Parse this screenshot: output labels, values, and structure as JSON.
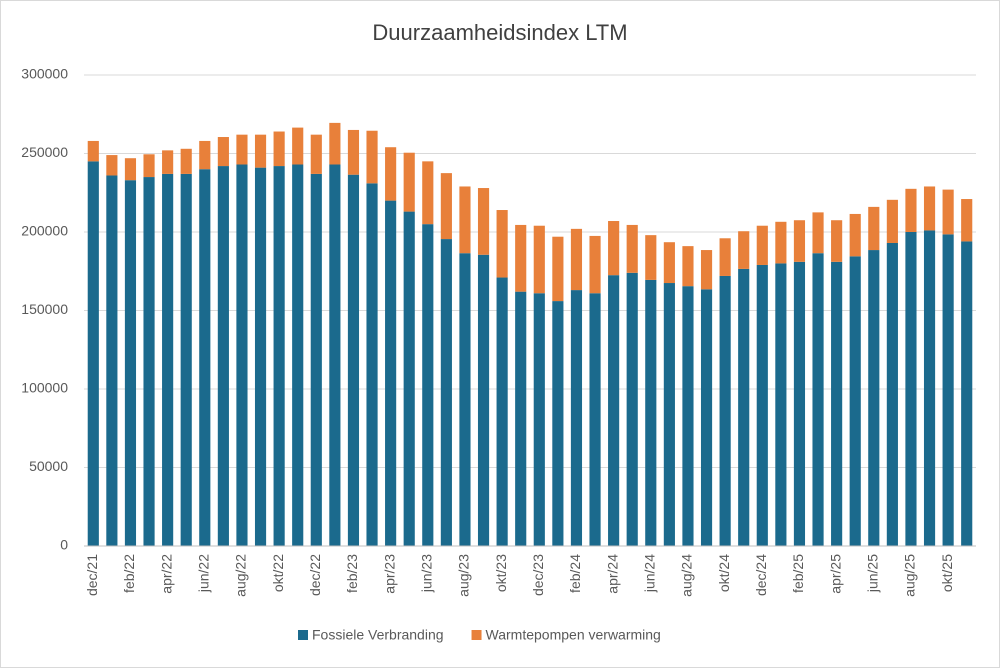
{
  "chart_data": {
    "type": "stacked-bar",
    "title": "Duurzaamheidsindex LTM",
    "categories": [
      "dec/21",
      null,
      "feb/22",
      null,
      "apr/22",
      null,
      "jun/22",
      null,
      "aug/22",
      null,
      "okt/22",
      null,
      "dec/22",
      null,
      "feb/23",
      null,
      "apr/23",
      null,
      "jun/23",
      null,
      "aug/23",
      null,
      "okt/23",
      null,
      "dec/23",
      null,
      "feb/24",
      null,
      "apr/24",
      null,
      "jun/24",
      null,
      "aug/24",
      null,
      "okt/24",
      null,
      "dec/24",
      null,
      "feb/25",
      null,
      "apr/25",
      null,
      "jun/25",
      null,
      "aug/25",
      null,
      "okt/25",
      null
    ],
    "series": [
      {
        "name": "Fossiele Verbranding",
        "color": "#1b6a8d",
        "values": [
          245000,
          236000,
          233000,
          235000,
          237000,
          237000,
          240000,
          242000,
          243000,
          241000,
          242000,
          243000,
          237000,
          243000,
          236500,
          231000,
          220000,
          213000,
          205000,
          195500,
          186500,
          185500,
          171000,
          162000,
          161000,
          156000,
          163000,
          161000,
          172500,
          174000,
          169500,
          167500,
          165500,
          163500,
          172000,
          176500,
          179000,
          180000,
          181000,
          186500,
          181000,
          184500,
          188500,
          193000,
          200000,
          201000,
          198500,
          194000
        ]
      },
      {
        "name": "Warmtepompen verwarming",
        "color": "#e8803a",
        "values": [
          13000,
          13000,
          14000,
          14500,
          15000,
          16000,
          18000,
          18500,
          19000,
          21000,
          22000,
          23500,
          25000,
          26500,
          28500,
          33500,
          34000,
          37500,
          40000,
          42000,
          42500,
          42500,
          43000,
          42500,
          43000,
          41000,
          39000,
          36500,
          34500,
          30500,
          28500,
          26000,
          25500,
          25000,
          24000,
          24000,
          25000,
          26500,
          26500,
          26000,
          26500,
          27000,
          27500,
          27500,
          27500,
          28000,
          28500,
          27000
        ]
      }
    ],
    "ylim": [
      0,
      300000
    ],
    "yticks": [
      0,
      50000,
      100000,
      150000,
      200000,
      250000,
      300000
    ],
    "grid": true,
    "legend": "bottom"
  }
}
